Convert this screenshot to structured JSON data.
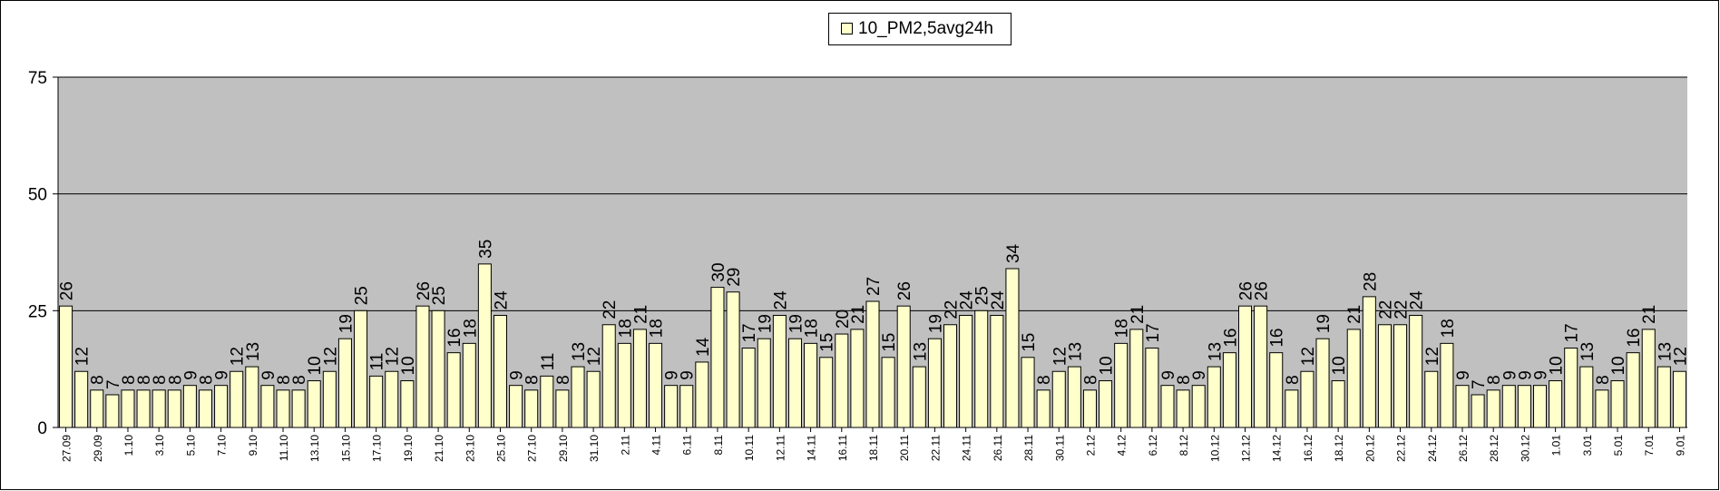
{
  "chart_data": {
    "type": "bar",
    "legend": {
      "position": "top-center",
      "entries": [
        "10_PM2,5avg24h"
      ]
    },
    "colors": {
      "plot_background": "#c0c0c0",
      "bar_fill": "#ffffcc",
      "bar_stroke": "#000000",
      "gridline": "#000000"
    },
    "grid": true,
    "ylim": [
      0,
      75
    ],
    "yticks": [
      "0",
      "25",
      "50",
      "75"
    ],
    "xtick_labels": [
      "27.09",
      "29.09",
      "1.10",
      "3.10",
      "5.10",
      "7.10",
      "9.10",
      "11.10",
      "13.10",
      "15.10",
      "17.10",
      "19.10",
      "21.10",
      "23.10",
      "25.10",
      "27.10",
      "29.10",
      "31.10",
      "2.11",
      "4.11",
      "6.11",
      "8.11",
      "10.11",
      "12.11",
      "14.11",
      "16.11",
      "18.11",
      "20.11",
      "22.11",
      "24.11",
      "26.11",
      "28.11",
      "30.11",
      "2.12",
      "4.12",
      "6.12",
      "8.12",
      "10.12",
      "12.12",
      "14.12",
      "16.12",
      "18.12",
      "20.12",
      "22.12",
      "24.12",
      "26.12",
      "28.12",
      "30.12",
      "1.01",
      "3.01",
      "5.01",
      "7.01",
      "9.01"
    ],
    "series": [
      {
        "name": "10_PM2,5avg24h",
        "values": [
          26,
          12,
          8,
          7,
          8,
          8,
          8,
          8,
          9,
          8,
          9,
          12,
          13,
          9,
          8,
          8,
          10,
          12,
          19,
          25,
          11,
          12,
          10,
          26,
          25,
          16,
          18,
          35,
          24,
          9,
          8,
          11,
          8,
          13,
          12,
          22,
          18,
          21,
          18,
          9,
          9,
          14,
          30,
          29,
          17,
          19,
          24,
          19,
          18,
          15,
          20,
          21,
          27,
          15,
          26,
          13,
          19,
          22,
          24,
          25,
          24,
          34,
          15,
          8,
          12,
          13,
          8,
          10,
          18,
          21,
          17,
          9,
          8,
          9,
          13,
          16,
          26,
          26,
          16,
          8,
          12,
          19,
          10,
          21,
          28,
          22,
          22,
          24,
          12,
          18,
          9,
          7,
          8,
          9,
          9,
          9,
          10,
          17,
          13,
          8,
          10,
          16,
          21,
          13,
          12
        ],
        "labels": [
          "26",
          "12",
          "8",
          "7",
          "8",
          "8",
          "8",
          "8",
          "9",
          "8",
          "9",
          "12",
          "13",
          "9",
          "8",
          "8",
          "10",
          "12",
          "19",
          "25",
          "11",
          "12",
          "10",
          "26",
          "25",
          "16",
          "18",
          "35",
          "24",
          "9",
          "8",
          "11",
          "8",
          "13",
          "12",
          "22",
          "18",
          "21",
          "18",
          "9",
          "9",
          "14",
          "30",
          "29",
          "17",
          "19",
          "24",
          "19",
          "18",
          "15",
          "20",
          "21",
          "27",
          "15",
          "26",
          "13",
          "19",
          "22",
          "24",
          "25",
          "24",
          "34",
          "15",
          "8",
          "12",
          "13",
          "8",
          "10",
          "18",
          "21",
          "17",
          "9",
          "8",
          "9",
          "13",
          "16",
          "26",
          "26",
          "16",
          "8",
          "12",
          "19",
          "10",
          "21",
          "28",
          "22",
          "22",
          "24",
          "12",
          "18",
          "9",
          "7",
          "8",
          "9",
          "9",
          "9",
          "10",
          "17",
          "13",
          "8",
          "10",
          "16",
          "21",
          "13",
          "12"
        ]
      }
    ]
  }
}
